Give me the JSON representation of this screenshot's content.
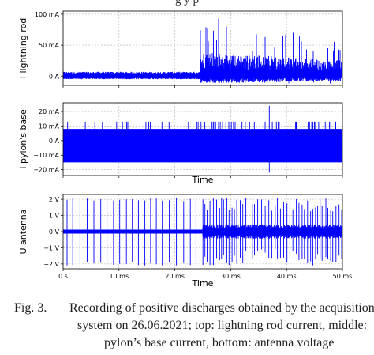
{
  "figure": {
    "top_caption_fragment": "g                                    y       p",
    "label": "Fig. 3.",
    "caption_lines": [
      "Recording of positive discharges obtained by the acquisition",
      "system on 26.06.2021; top: lightning rod current, middle:",
      "pylon’s base current, bottom: antenna voltage"
    ]
  },
  "chart_data": [
    {
      "type": "line",
      "panel": "top",
      "ylabel": "I lightning rod",
      "xlabel": "",
      "xlim": [
        0,
        50
      ],
      "ylim": [
        -15,
        105
      ],
      "yticks": [
        {
          "value": 100,
          "label": "100 mA"
        },
        {
          "value": 50,
          "label": "50 mA"
        },
        {
          "value": 0,
          "label": "0 A"
        }
      ],
      "xticks": [
        0,
        10,
        20,
        30,
        40,
        50
      ],
      "grid": true,
      "color": "#0000ff",
      "series": [
        {
          "x": [
            0,
            24.5
          ],
          "y_baseline": 0,
          "y_band": [
            -3,
            4
          ],
          "description_values": "quiet"
        },
        {
          "x": [
            24.5,
            50
          ],
          "y_band": [
            -10,
            30
          ],
          "peak_max": 97,
          "peak_min": -12
        }
      ]
    },
    {
      "type": "line",
      "panel": "middle",
      "ylabel": "I pylon's base",
      "xlabel": "Time",
      "xlim": [
        0,
        50
      ],
      "ylim": [
        -24,
        26
      ],
      "yticks": [
        {
          "value": 20,
          "label": "20 mA"
        },
        {
          "value": 10,
          "label": "10 mA"
        },
        {
          "value": 0,
          "label": "0 A"
        },
        {
          "value": -10,
          "label": "−10 mA"
        },
        {
          "value": -20,
          "label": "−20 mA"
        }
      ],
      "xticks": [
        0,
        10,
        20,
        30,
        40,
        50
      ],
      "grid": true,
      "color": "#0000ff",
      "series": [
        {
          "x": [
            0,
            50
          ],
          "y_band": [
            -15,
            8
          ],
          "spike_max": 24,
          "spike_min": -22
        }
      ]
    },
    {
      "type": "line",
      "panel": "bottom",
      "ylabel": "U antenna",
      "xlabel": "Time",
      "xlim": [
        0,
        50
      ],
      "ylim": [
        -2.3,
        2.3
      ],
      "yticks": [
        {
          "value": 2,
          "label": "2 V"
        },
        {
          "value": 1,
          "label": "1 V"
        },
        {
          "value": 0,
          "label": "0 V"
        },
        {
          "value": -1,
          "label": "−1 V"
        },
        {
          "value": -2,
          "label": "−2 V"
        }
      ],
      "xticks": [
        {
          "value": 0,
          "label": "0 s"
        },
        {
          "value": 10,
          "label": "10 ms"
        },
        {
          "value": 20,
          "label": "20 ms"
        },
        {
          "value": 30,
          "label": "30 ms"
        },
        {
          "value": 40,
          "label": "40 ms"
        },
        {
          "value": 50,
          "label": "50 ms"
        }
      ],
      "grid": true,
      "color": "#0000ff",
      "series": [
        {
          "x": [
            0,
            50
          ],
          "y_baseline": 0,
          "pulse_max": 2.1,
          "pulse_min": -2.1
        }
      ]
    }
  ]
}
